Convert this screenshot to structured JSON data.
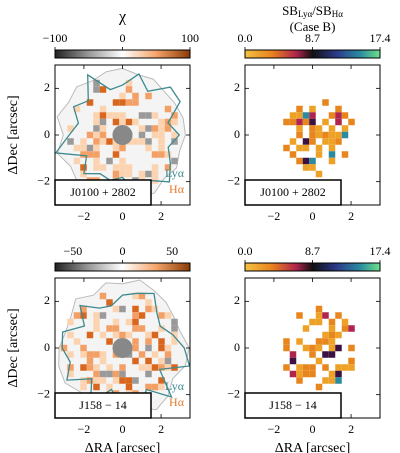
{
  "chart_data": [
    {
      "type": "map",
      "cmap": "diverging",
      "colorbar_label": "χ",
      "colorbar_lim": [
        -100,
        100
      ],
      "colorbar_ticks": [
        {
          "value": -100,
          "label": "−100"
        },
        0,
        100
      ],
      "xlim": [
        -3.5,
        3.5
      ],
      "ylim": [
        -3,
        3
      ],
      "xticks": [
        {
          "value": -2,
          "label": "−2"
        },
        0,
        2
      ],
      "yticks": [
        {
          "value": -2,
          "label": "−2"
        },
        0,
        2
      ],
      "ylabel": "ΔDec [arcsec]",
      "target": "J0100 + 2802",
      "lines": [
        "Lyα",
        "Hα"
      ]
    },
    {
      "type": "map",
      "cmap": "ratio",
      "colorbar_label": [
        "SB",
        "Lyα",
        "/SB",
        "Hα"
      ],
      "colorbar_sublabel": "(Case B)",
      "colorbar_lim": [
        0,
        17.4
      ],
      "colorbar_ticks": [
        {
          "value": 0,
          "label": "0.0"
        },
        8.7,
        17.4
      ],
      "xlim": [
        -3.5,
        3.5
      ],
      "ylim": [
        -3,
        3
      ],
      "xticks": [
        {
          "value": -2,
          "label": "−2"
        },
        0,
        2
      ],
      "yticks": [
        {
          "value": -2,
          "label": "−2"
        },
        0,
        2
      ],
      "target": "J0100 + 2802"
    },
    {
      "type": "map",
      "cmap": "diverging",
      "colorbar_lim": [
        -68,
        68
      ],
      "colorbar_ticks": [
        {
          "value": -50,
          "label": "−50"
        },
        0,
        50
      ],
      "xlim": [
        -3.5,
        3.5
      ],
      "ylim": [
        -3,
        3
      ],
      "xticks": [
        {
          "value": -2,
          "label": "−2"
        },
        0,
        2
      ],
      "yticks": [
        {
          "value": -2,
          "label": "−2"
        },
        0,
        2
      ],
      "xlabel": "ΔRA [arcsec]",
      "ylabel": "ΔDec [arcsec]",
      "target": "J158 − 14",
      "lines": [
        "Lyα",
        "Hα"
      ]
    },
    {
      "type": "map",
      "cmap": "ratio",
      "colorbar_lim": [
        0,
        17.4
      ],
      "colorbar_ticks": [
        {
          "value": 0,
          "label": "0.0"
        },
        8.7,
        17.4
      ],
      "xlim": [
        -3.5,
        3.5
      ],
      "ylim": [
        -3,
        3
      ],
      "xticks": [
        {
          "value": -2,
          "label": "−2"
        },
        0,
        2
      ],
      "yticks": [
        {
          "value": -2,
          "label": "−2"
        },
        0,
        2
      ],
      "xlabel": "ΔRA [arcsec]",
      "target": "J158 − 14"
    }
  ]
}
